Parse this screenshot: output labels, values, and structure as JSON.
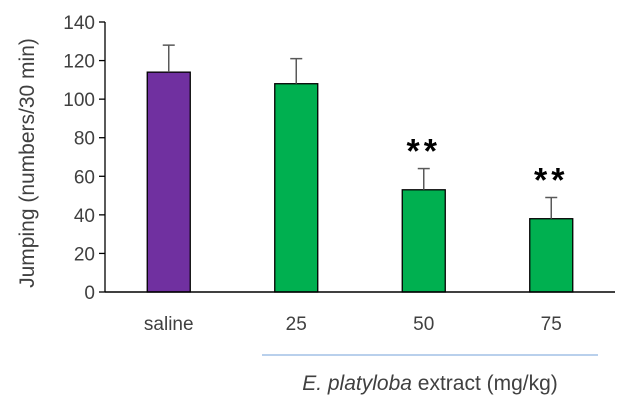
{
  "chart_data": {
    "type": "bar",
    "categories": [
      "saline",
      "25",
      "50",
      "75"
    ],
    "values": [
      114,
      108,
      53,
      38
    ],
    "errors": [
      14,
      13,
      11,
      11
    ],
    "significance": [
      "",
      "",
      "**",
      "**"
    ],
    "bar_colors": [
      "#7030a0",
      "#00b050",
      "#00b050",
      "#00b050"
    ],
    "title": "",
    "ylabel": "Jumping (numbers/30 min)",
    "xlabel_italic": "E. platyloba",
    "xlabel_rest": " extract (mg/kg)",
    "ylim": [
      0,
      140
    ],
    "yticks": [
      0,
      20,
      40,
      60,
      80,
      100,
      120,
      140
    ],
    "grid": false,
    "legend": "none"
  }
}
